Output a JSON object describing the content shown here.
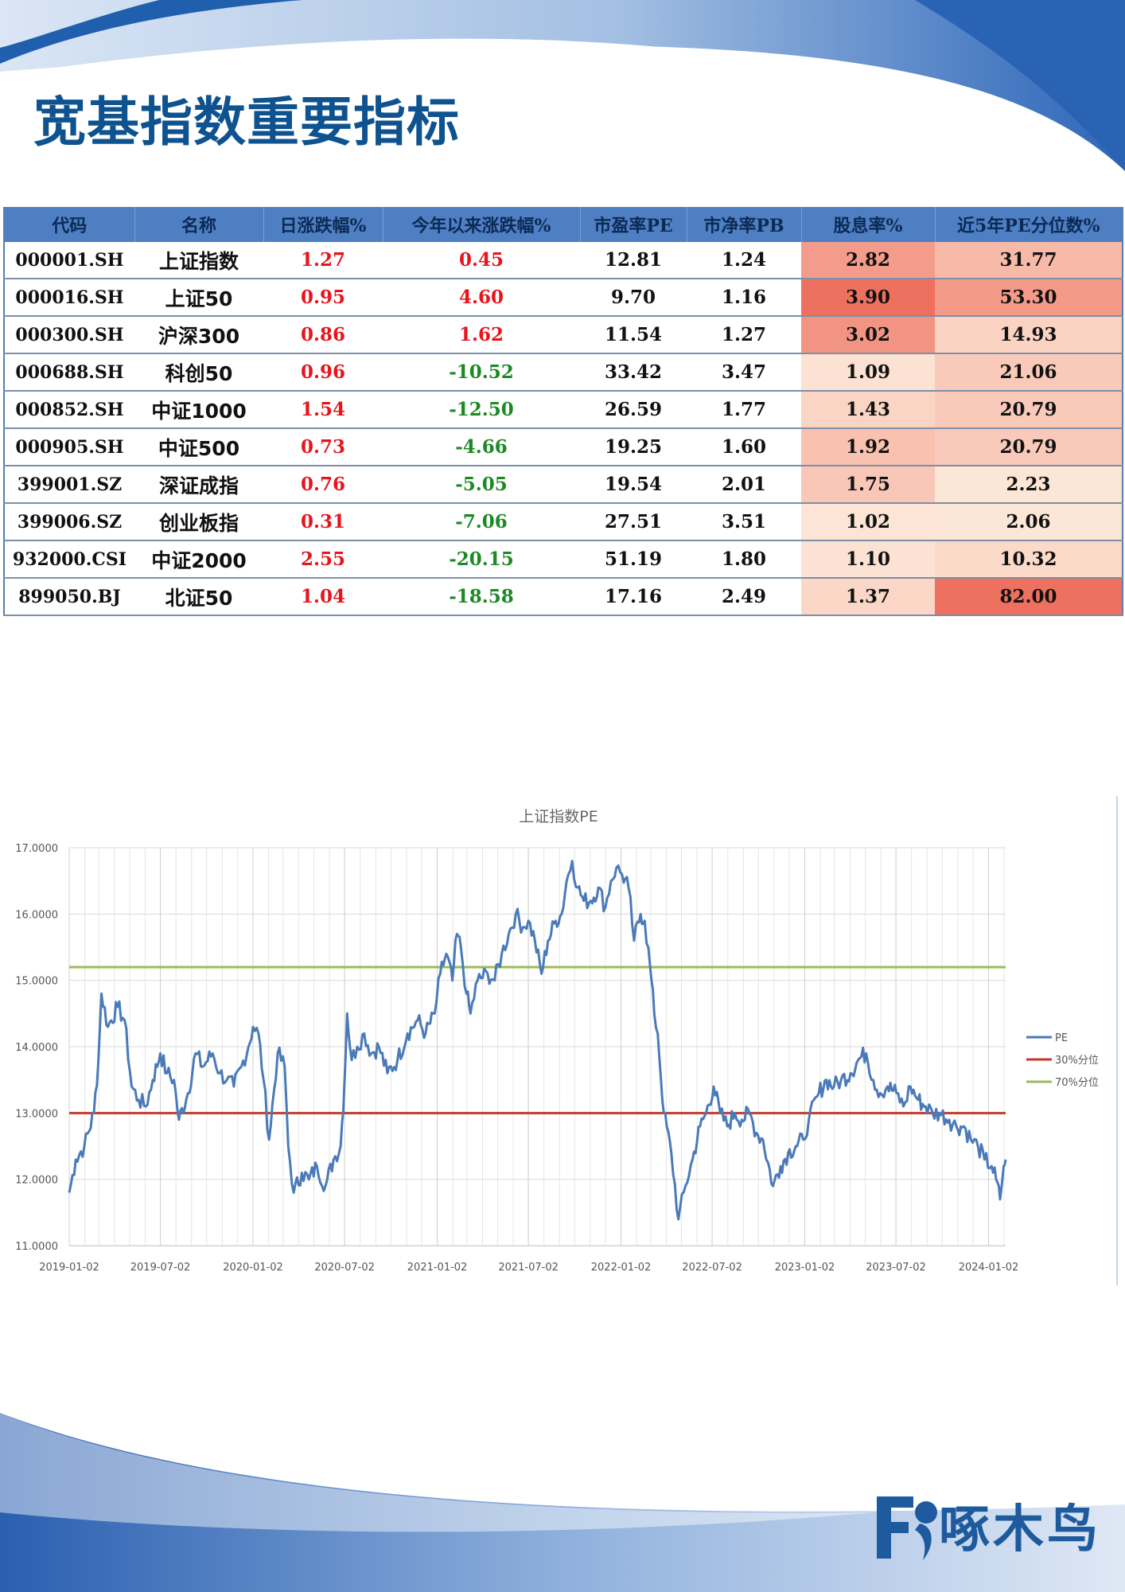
{
  "page": {
    "title": "宽基指数重要指标"
  },
  "colors": {
    "brand_blue": "#1f5fae",
    "title_blue": "#0e5390",
    "header_blue": "#4f7fc3",
    "up_red": "#e8141b",
    "down_green": "#1b8a24"
  },
  "table": {
    "headers": [
      "代码",
      "名称",
      "日涨跌幅%",
      "今年以来涨跌幅%",
      "市盈率PE",
      "市净率PB",
      "股息率%",
      "近5年PE分位数%"
    ],
    "rows": [
      {
        "code": "000001.SH",
        "name": "上证指数",
        "day": "1.27",
        "ytd": "0.45",
        "pe": "12.81",
        "pb": "1.24",
        "dy": "2.82",
        "pct": "31.77"
      },
      {
        "code": "000016.SH",
        "name": "上证50",
        "day": "0.95",
        "ytd": "4.60",
        "pe": "9.70",
        "pb": "1.16",
        "dy": "3.90",
        "pct": "53.30"
      },
      {
        "code": "000300.SH",
        "name": "沪深300",
        "day": "0.86",
        "ytd": "1.62",
        "pe": "11.54",
        "pb": "1.27",
        "dy": "3.02",
        "pct": "14.93"
      },
      {
        "code": "000688.SH",
        "name": "科创50",
        "day": "0.96",
        "ytd": "-10.52",
        "pe": "33.42",
        "pb": "3.47",
        "dy": "1.09",
        "pct": "21.06"
      },
      {
        "code": "000852.SH",
        "name": "中证1000",
        "day": "1.54",
        "ytd": "-12.50",
        "pe": "26.59",
        "pb": "1.77",
        "dy": "1.43",
        "pct": "20.79"
      },
      {
        "code": "000905.SH",
        "name": "中证500",
        "day": "0.73",
        "ytd": "-4.66",
        "pe": "19.25",
        "pb": "1.60",
        "dy": "1.92",
        "pct": "20.79"
      },
      {
        "code": "399001.SZ",
        "name": "深证成指",
        "day": "0.76",
        "ytd": "-5.05",
        "pe": "19.54",
        "pb": "2.01",
        "dy": "1.75",
        "pct": "2.23"
      },
      {
        "code": "399006.SZ",
        "name": "创业板指",
        "day": "0.31",
        "ytd": "-7.06",
        "pe": "27.51",
        "pb": "3.51",
        "dy": "1.02",
        "pct": "2.06"
      },
      {
        "code": "932000.CSI",
        "name": "中证2000",
        "day": "2.55",
        "ytd": "-20.15",
        "pe": "51.19",
        "pb": "1.80",
        "dy": "1.10",
        "pct": "10.32"
      },
      {
        "code": "899050.BJ",
        "name": "北证50",
        "day": "1.04",
        "ytd": "-18.58",
        "pe": "17.16",
        "pb": "2.49",
        "dy": "1.37",
        "pct": "82.00"
      }
    ]
  },
  "chart_data": {
    "type": "line",
    "title": "上证指数PE",
    "xlabel": "",
    "ylabel": "",
    "ylim": [
      11,
      17
    ],
    "xlim": [
      "2019-01-02",
      "2024-02-05"
    ],
    "y_ticks": [
      "11.0000",
      "12.0000",
      "13.0000",
      "14.0000",
      "15.0000",
      "16.0000",
      "17.0000"
    ],
    "x_ticks": [
      "2019-01-02",
      "2019-07-02",
      "2020-01-02",
      "2020-07-02",
      "2021-01-02",
      "2021-07-02",
      "2022-01-02",
      "2022-07-02",
      "2023-01-02",
      "2023-07-02",
      "2024-01-02"
    ],
    "grid": true,
    "legend_position": "right",
    "series": [
      {
        "name": "PE",
        "color": "#4a7ab8",
        "points": [
          [
            "2019-01-02",
            11.8
          ],
          [
            "2019-01-15",
            12.3
          ],
          [
            "2019-02-01",
            12.5
          ],
          [
            "2019-02-20",
            13.0
          ],
          [
            "2019-03-01",
            13.8
          ],
          [
            "2019-03-07",
            14.8
          ],
          [
            "2019-03-20",
            14.3
          ],
          [
            "2019-04-08",
            14.6
          ],
          [
            "2019-04-22",
            14.4
          ],
          [
            "2019-05-06",
            13.4
          ],
          [
            "2019-05-20",
            13.2
          ],
          [
            "2019-06-03",
            13.1
          ],
          [
            "2019-06-17",
            13.5
          ],
          [
            "2019-07-02",
            13.9
          ],
          [
            "2019-07-15",
            13.6
          ],
          [
            "2019-07-29",
            13.5
          ],
          [
            "2019-08-08",
            12.9
          ],
          [
            "2019-08-26",
            13.3
          ],
          [
            "2019-09-10",
            13.9
          ],
          [
            "2019-09-24",
            13.7
          ],
          [
            "2019-10-14",
            13.9
          ],
          [
            "2019-10-28",
            13.6
          ],
          [
            "2019-11-11",
            13.5
          ],
          [
            "2019-11-25",
            13.4
          ],
          [
            "2019-12-10",
            13.7
          ],
          [
            "2019-12-24",
            14.0
          ],
          [
            "2020-01-02",
            14.3
          ],
          [
            "2020-01-13",
            14.2
          ],
          [
            "2020-01-23",
            13.5
          ],
          [
            "2020-02-03",
            12.6
          ],
          [
            "2020-02-20",
            13.9
          ],
          [
            "2020-03-05",
            13.7
          ],
          [
            "2020-03-12",
            12.5
          ],
          [
            "2020-03-23",
            11.8
          ],
          [
            "2020-04-08",
            12.1
          ],
          [
            "2020-04-22",
            12.0
          ],
          [
            "2020-05-08",
            12.2
          ],
          [
            "2020-05-25",
            11.9
          ],
          [
            "2020-06-10",
            12.3
          ],
          [
            "2020-06-24",
            12.5
          ],
          [
            "2020-07-02",
            13.5
          ],
          [
            "2020-07-07",
            14.5
          ],
          [
            "2020-07-16",
            13.8
          ],
          [
            "2020-07-27",
            14.0
          ],
          [
            "2020-08-10",
            14.2
          ],
          [
            "2020-08-24",
            13.9
          ],
          [
            "2020-09-08",
            14.0
          ],
          [
            "2020-09-25",
            13.6
          ],
          [
            "2020-10-15",
            13.8
          ],
          [
            "2020-11-04",
            14.2
          ],
          [
            "2020-11-24",
            14.4
          ],
          [
            "2020-12-10",
            14.2
          ],
          [
            "2020-12-28",
            14.5
          ],
          [
            "2021-01-08",
            15.1
          ],
          [
            "2021-01-20",
            15.4
          ],
          [
            "2021-02-01",
            15.0
          ],
          [
            "2021-02-10",
            15.7
          ],
          [
            "2021-02-18",
            15.5
          ],
          [
            "2021-03-01",
            14.8
          ],
          [
            "2021-03-09",
            14.5
          ],
          [
            "2021-03-23",
            15.0
          ],
          [
            "2021-04-12",
            15.1
          ],
          [
            "2021-04-26",
            15.0
          ],
          [
            "2021-05-10",
            15.4
          ],
          [
            "2021-05-24",
            15.7
          ],
          [
            "2021-06-07",
            16.0
          ],
          [
            "2021-06-21",
            15.8
          ],
          [
            "2021-07-02",
            15.9
          ],
          [
            "2021-07-15",
            15.6
          ],
          [
            "2021-07-28",
            15.1
          ],
          [
            "2021-08-10",
            15.6
          ],
          [
            "2021-08-25",
            15.9
          ],
          [
            "2021-09-06",
            16.0
          ],
          [
            "2021-09-16",
            16.5
          ],
          [
            "2021-09-27",
            16.8
          ],
          [
            "2021-10-08",
            16.4
          ],
          [
            "2021-10-20",
            16.2
          ],
          [
            "2021-11-03",
            16.2
          ],
          [
            "2021-11-18",
            16.4
          ],
          [
            "2021-12-02",
            16.1
          ],
          [
            "2021-12-13",
            16.5
          ],
          [
            "2021-12-24",
            16.7
          ],
          [
            "2022-01-04",
            16.6
          ],
          [
            "2022-01-17",
            16.4
          ],
          [
            "2022-01-28",
            15.6
          ],
          [
            "2022-02-10",
            16.0
          ],
          [
            "2022-02-18",
            15.9
          ],
          [
            "2022-03-01",
            15.2
          ],
          [
            "2022-03-09",
            14.5
          ],
          [
            "2022-03-16",
            14.2
          ],
          [
            "2022-03-28",
            13.0
          ],
          [
            "2022-04-12",
            12.4
          ],
          [
            "2022-04-26",
            11.4
          ],
          [
            "2022-05-10",
            11.9
          ],
          [
            "2022-05-24",
            12.3
          ],
          [
            "2022-06-08",
            12.8
          ],
          [
            "2022-06-20",
            13.0
          ],
          [
            "2022-07-05",
            13.4
          ],
          [
            "2022-07-18",
            13.0
          ],
          [
            "2022-08-01",
            12.8
          ],
          [
            "2022-08-16",
            13.0
          ],
          [
            "2022-08-30",
            12.9
          ],
          [
            "2022-09-14",
            13.0
          ],
          [
            "2022-09-28",
            12.7
          ],
          [
            "2022-10-11",
            12.6
          ],
          [
            "2022-10-31",
            11.9
          ],
          [
            "2022-11-15",
            12.2
          ],
          [
            "2022-11-30",
            12.4
          ],
          [
            "2022-12-15",
            12.5
          ],
          [
            "2022-12-30",
            12.6
          ],
          [
            "2023-01-10",
            12.9
          ],
          [
            "2023-01-30",
            13.3
          ],
          [
            "2023-02-14",
            13.5
          ],
          [
            "2023-03-01",
            13.4
          ],
          [
            "2023-03-15",
            13.5
          ],
          [
            "2023-04-03",
            13.6
          ],
          [
            "2023-04-18",
            13.8
          ],
          [
            "2023-05-04",
            13.9
          ],
          [
            "2023-05-18",
            13.5
          ],
          [
            "2023-06-01",
            13.3
          ],
          [
            "2023-06-15",
            13.4
          ],
          [
            "2023-07-03",
            13.3
          ],
          [
            "2023-07-17",
            13.1
          ],
          [
            "2023-07-31",
            13.4
          ],
          [
            "2023-08-15",
            13.2
          ],
          [
            "2023-08-30",
            13.1
          ],
          [
            "2023-09-13",
            13.0
          ],
          [
            "2023-09-27",
            13.0
          ],
          [
            "2023-10-16",
            12.9
          ],
          [
            "2023-10-30",
            12.8
          ],
          [
            "2023-11-14",
            12.8
          ],
          [
            "2023-11-28",
            12.6
          ],
          [
            "2023-12-12",
            12.5
          ],
          [
            "2023-12-25",
            12.3
          ],
          [
            "2024-01-08",
            12.2
          ],
          [
            "2024-01-17",
            12.0
          ],
          [
            "2024-01-25",
            11.7
          ],
          [
            "2024-02-01",
            12.2
          ],
          [
            "2024-02-05",
            12.3
          ]
        ]
      },
      {
        "name": "30%分位",
        "color": "#c0392b",
        "values": [
          13.0
        ]
      },
      {
        "name": "70%分位",
        "color": "#9bbb59",
        "values": [
          15.2
        ]
      }
    ]
  },
  "logo": {
    "text": "啄木鸟"
  }
}
